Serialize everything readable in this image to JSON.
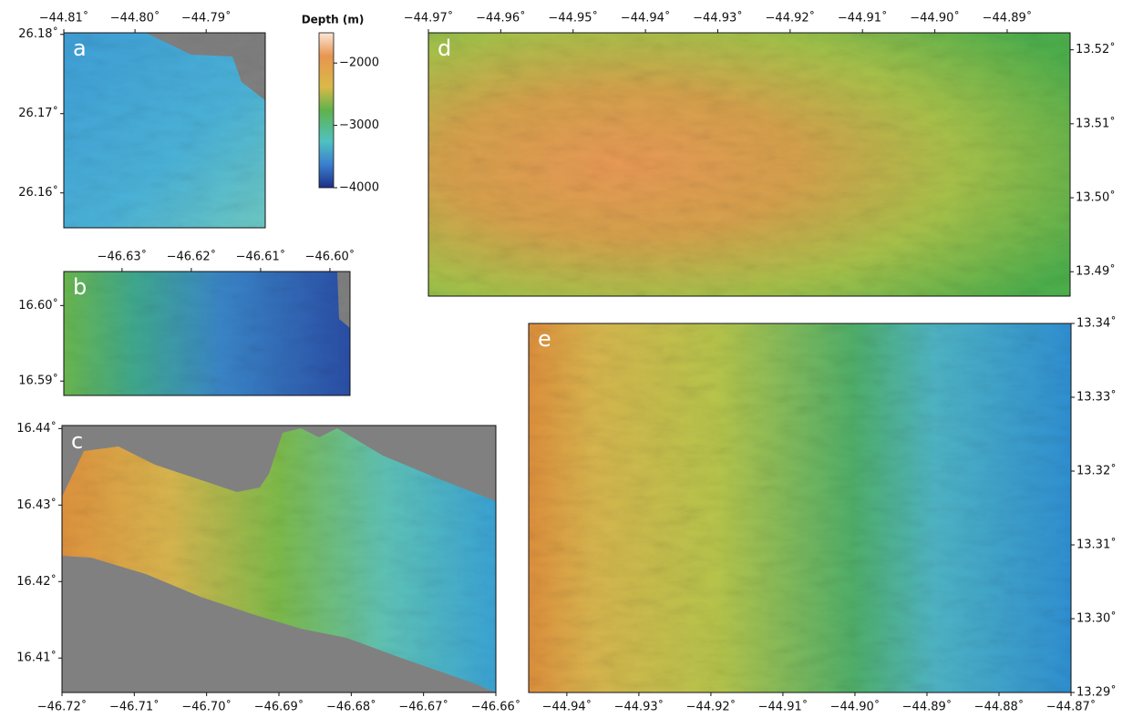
{
  "colorbar": {
    "title": "Depth (m)",
    "lim": [
      -4000,
      -1515
    ],
    "ticks": [
      {
        "value": -2000,
        "label": "−2000"
      },
      {
        "value": -3000,
        "label": "−3000"
      },
      {
        "value": -4000,
        "label": "−4000"
      }
    ]
  },
  "panels": [
    {
      "label": "a",
      "xlim": [
        -44.81,
        -44.7817
      ],
      "ylim": [
        26.1556,
        26.1802
      ],
      "xticks": [
        {
          "value": -44.81,
          "label": "−44.81˚"
        },
        {
          "value": -44.8,
          "label": "−44.80˚"
        },
        {
          "value": -44.79,
          "label": "−44.79˚"
        }
      ],
      "yticks": [
        {
          "value": 26.18,
          "label": "26.18˚"
        },
        {
          "value": 26.17,
          "label": "26.17˚"
        },
        {
          "value": 26.16,
          "label": "26.16˚"
        }
      ]
    },
    {
      "label": "b",
      "xlim": [
        -46.6384,
        -46.5971
      ],
      "ylim": [
        16.5881,
        16.6045
      ],
      "xticks": [
        {
          "value": -46.63,
          "label": "−46.63˚"
        },
        {
          "value": -46.62,
          "label": "−46.62˚"
        },
        {
          "value": -46.61,
          "label": "−46.61˚"
        },
        {
          "value": -46.6,
          "label": "−46.60˚"
        }
      ],
      "yticks": [
        {
          "value": 16.6,
          "label": "16.60˚"
        },
        {
          "value": 16.59,
          "label": "16.59˚"
        }
      ]
    },
    {
      "label": "c",
      "xlim": [
        -46.72,
        -46.66
      ],
      "ylim": [
        16.4055,
        16.4404
      ],
      "xticks": [
        {
          "value": -46.72,
          "label": "−46.72˚"
        },
        {
          "value": -46.71,
          "label": "−46.71˚"
        },
        {
          "value": -46.7,
          "label": "−46.70˚"
        },
        {
          "value": -46.69,
          "label": "−46.69˚"
        },
        {
          "value": -46.68,
          "label": "−46.68˚"
        },
        {
          "value": -46.67,
          "label": "−46.67˚"
        },
        {
          "value": -46.66,
          "label": "−46.66˚"
        }
      ],
      "yticks": [
        {
          "value": 16.44,
          "label": "16.44˚"
        },
        {
          "value": 16.43,
          "label": "16.43˚"
        },
        {
          "value": 16.42,
          "label": "16.42˚"
        },
        {
          "value": 16.41,
          "label": "16.41˚"
        }
      ]
    },
    {
      "label": "d",
      "xlim": [
        -44.97,
        -44.8813
      ],
      "ylim": [
        13.4867,
        13.5223
      ],
      "xticks": [
        {
          "value": -44.97,
          "label": "−44.97˚"
        },
        {
          "value": -44.96,
          "label": "−44.96˚"
        },
        {
          "value": -44.95,
          "label": "−44.95˚"
        },
        {
          "value": -44.94,
          "label": "−44.94˚"
        },
        {
          "value": -44.93,
          "label": "−44.93˚"
        },
        {
          "value": -44.92,
          "label": "−44.92˚"
        },
        {
          "value": -44.91,
          "label": "−44.91˚"
        },
        {
          "value": -44.9,
          "label": "−44.90˚"
        },
        {
          "value": -44.89,
          "label": "−44.89˚"
        }
      ],
      "yticks": [
        {
          "value": 13.52,
          "label": "13.52˚"
        },
        {
          "value": 13.51,
          "label": "13.51˚"
        },
        {
          "value": 13.5,
          "label": "13.50˚"
        },
        {
          "value": 13.49,
          "label": "13.49˚"
        }
      ]
    },
    {
      "label": "e",
      "xlim": [
        -44.9453,
        -44.87
      ],
      "ylim": [
        13.29,
        13.34
      ],
      "xticks": [
        {
          "value": -44.94,
          "label": "−44.94˚"
        },
        {
          "value": -44.93,
          "label": "−44.93˚"
        },
        {
          "value": -44.92,
          "label": "−44.92˚"
        },
        {
          "value": -44.91,
          "label": "−44.91˚"
        },
        {
          "value": -44.9,
          "label": "−44.90˚"
        },
        {
          "value": -44.89,
          "label": "−44.89˚"
        },
        {
          "value": -44.88,
          "label": "−44.88˚"
        },
        {
          "value": -44.87,
          "label": "−44.87˚"
        }
      ],
      "yticks": [
        {
          "value": 13.34,
          "label": "13.34˚"
        },
        {
          "value": 13.33,
          "label": "13.33˚"
        },
        {
          "value": 13.32,
          "label": "13.32˚"
        },
        {
          "value": 13.31,
          "label": "13.31˚"
        },
        {
          "value": 13.3,
          "label": "13.30˚"
        },
        {
          "value": 13.29,
          "label": "13.29˚"
        }
      ]
    }
  ]
}
